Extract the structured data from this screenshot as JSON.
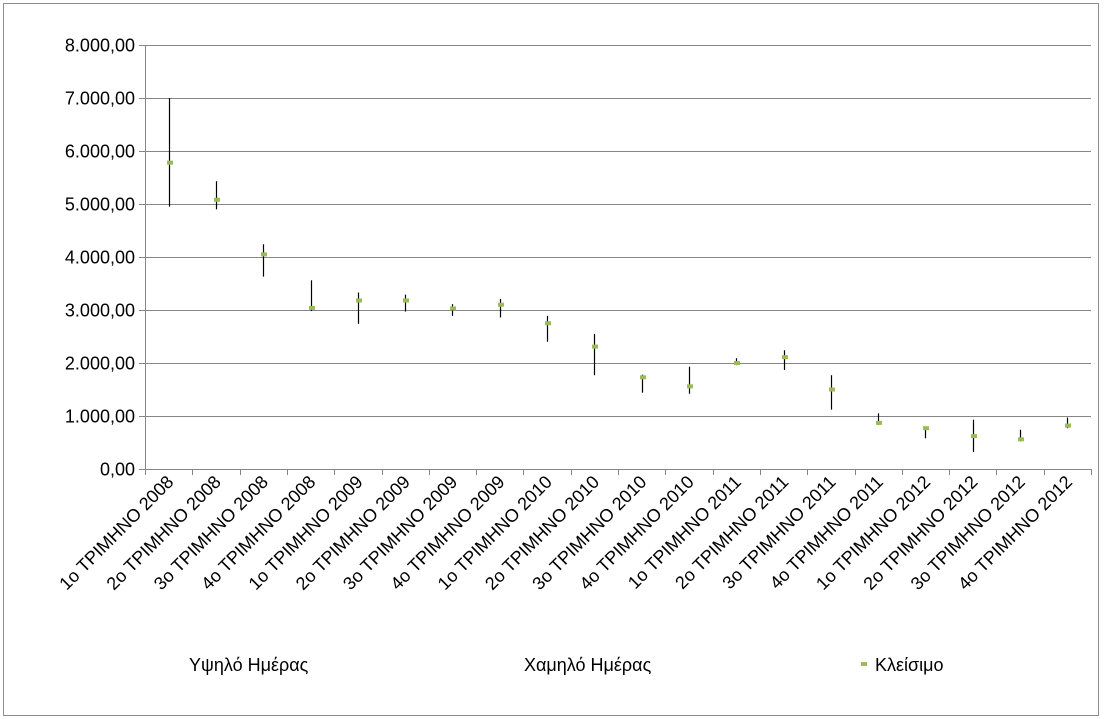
{
  "chart_data": {
    "type": "stock",
    "title": "",
    "xlabel": "",
    "ylabel": "",
    "ylim": [
      0,
      8000
    ],
    "y_ticks": [
      "0,00",
      "1.000,00",
      "2.000,00",
      "3.000,00",
      "4.000,00",
      "5.000,00",
      "6.000,00",
      "7.000,00",
      "8.000,00"
    ],
    "y_tick_values": [
      0,
      1000,
      2000,
      3000,
      4000,
      5000,
      6000,
      7000,
      8000
    ],
    "grid": true,
    "legend_position": "bottom",
    "categories": [
      "1ο ΤΡΙΜΗΝΟ 2008",
      "2ο ΤΡΙΜΗΝΟ 2008",
      "3ο ΤΡΙΜΗΝΟ 2008",
      "4ο ΤΡΙΜΗΝΟ 2008",
      "1ο ΤΡΙΜΗΝΟ 2009",
      "2ο ΤΡΙΜΗΝΟ 2009",
      "3ο ΤΡΙΜΗΝΟ 2009",
      "4ο ΤΡΙΜΗΝΟ 2009",
      "1ο ΤΡΙΜΗΝΟ 2010",
      "2ο ΤΡΙΜΗΝΟ 2010",
      "3ο ΤΡΙΜΗΝΟ 2010",
      "4ο ΤΡΙΜΗΝΟ 2010",
      "1ο ΤΡΙΜΗΝΟ 2011",
      "2ο ΤΡΙΜΗΝΟ 2011",
      "3ο ΤΡΙΜΗΝΟ 2011",
      "4ο ΤΡΙΜΗΝΟ 2011",
      "1ο ΤΡΙΜΗΝΟ 2012",
      "2ο ΤΡΙΜΗΝΟ 2012",
      "3ο ΤΡΙΜΗΝΟ 2012",
      "4ο ΤΡΙΜΗΝΟ 2012"
    ],
    "series": [
      {
        "name": "Υψηλό Ημέρας",
        "values": [
          7000,
          5430,
          4240,
          3560,
          3330,
          3290,
          3110,
          3210,
          2890,
          2550,
          1780,
          1930,
          2090,
          2240,
          1770,
          1050,
          800,
          930,
          740,
          970
        ]
      },
      {
        "name": "Χαμηλό Ημέρας",
        "values": [
          4950,
          4900,
          3630,
          2980,
          2740,
          2970,
          2890,
          2860,
          2400,
          1770,
          1440,
          1420,
          1960,
          1870,
          1120,
          830,
          580,
          320,
          520,
          770
        ]
      },
      {
        "name": "Κλείσιμο",
        "values": [
          5780,
          5080,
          4050,
          3040,
          3180,
          3180,
          3030,
          3100,
          2750,
          2310,
          1730,
          1560,
          2000,
          2110,
          1500,
          870,
          770,
          620,
          560,
          820
        ]
      }
    ],
    "colors": {
      "hilo": "#000000",
      "close": "#9bbb59",
      "grid": "#868686",
      "axis": "#868686"
    }
  }
}
